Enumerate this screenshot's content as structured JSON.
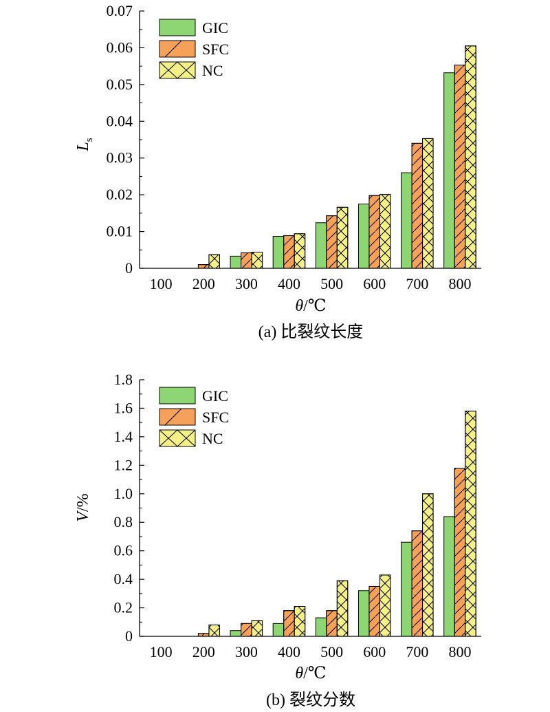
{
  "colors": {
    "GIC": "#8ed673",
    "SFC": "#f5a15a",
    "NC": "#f3f08a",
    "axis": "#000000"
  },
  "chart_data": [
    {
      "type": "bar",
      "caption": "(a) 比裂纹长度",
      "xlabel_var": "θ",
      "xlabel_unit": "/℃",
      "ylabel_var": "L",
      "ylabel_sub": "s",
      "categories": [
        "100",
        "200",
        "300",
        "400",
        "500",
        "600",
        "700",
        "800"
      ],
      "ylim": [
        0,
        0.07
      ],
      "yticks": [
        0,
        0.01,
        0.02,
        0.03,
        0.04,
        0.05,
        0.06,
        0.07
      ],
      "ytick_labels": [
        "0",
        "0.01",
        "0.02",
        "0.03",
        "0.04",
        "0.05",
        "0.06",
        "0.07"
      ],
      "series": [
        {
          "name": "GIC",
          "pattern": "none",
          "values": [
            0,
            0,
            0.0033,
            0.0087,
            0.0124,
            0.0175,
            0.026,
            0.0532
          ]
        },
        {
          "name": "SFC",
          "pattern": "slash",
          "values": [
            0,
            0.001,
            0.0042,
            0.0089,
            0.0143,
            0.0198,
            0.034,
            0.0553
          ]
        },
        {
          "name": "NC",
          "pattern": "cross",
          "values": [
            0,
            0.0037,
            0.0044,
            0.0094,
            0.0166,
            0.0201,
            0.0353,
            0.0605
          ]
        }
      ],
      "legend_position": "top-left",
      "grid": false
    },
    {
      "type": "bar",
      "caption": "(b) 裂纹分数",
      "xlabel_var": "θ",
      "xlabel_unit": "/℃",
      "ylabel_var": "V",
      "ylabel_unit": "/%",
      "categories": [
        "100",
        "200",
        "300",
        "400",
        "500",
        "600",
        "700",
        "800"
      ],
      "ylim": [
        0,
        1.8
      ],
      "yticks": [
        0,
        0.2,
        0.4,
        0.6,
        0.8,
        1.0,
        1.2,
        1.4,
        1.6,
        1.8
      ],
      "ytick_labels": [
        "0",
        "0.2",
        "0.4",
        "0.6",
        "0.8",
        "1.0",
        "1.2",
        "1.4",
        "1.6",
        "1.8"
      ],
      "series": [
        {
          "name": "GIC",
          "pattern": "none",
          "values": [
            0,
            0,
            0.04,
            0.09,
            0.13,
            0.32,
            0.66,
            0.84
          ]
        },
        {
          "name": "SFC",
          "pattern": "slash",
          "values": [
            0,
            0.02,
            0.09,
            0.18,
            0.18,
            0.35,
            0.74,
            1.18
          ]
        },
        {
          "name": "NC",
          "pattern": "cross",
          "values": [
            0,
            0.08,
            0.11,
            0.21,
            0.39,
            0.43,
            1.0,
            1.58
          ]
        }
      ],
      "legend_position": "top-left",
      "grid": false
    }
  ]
}
